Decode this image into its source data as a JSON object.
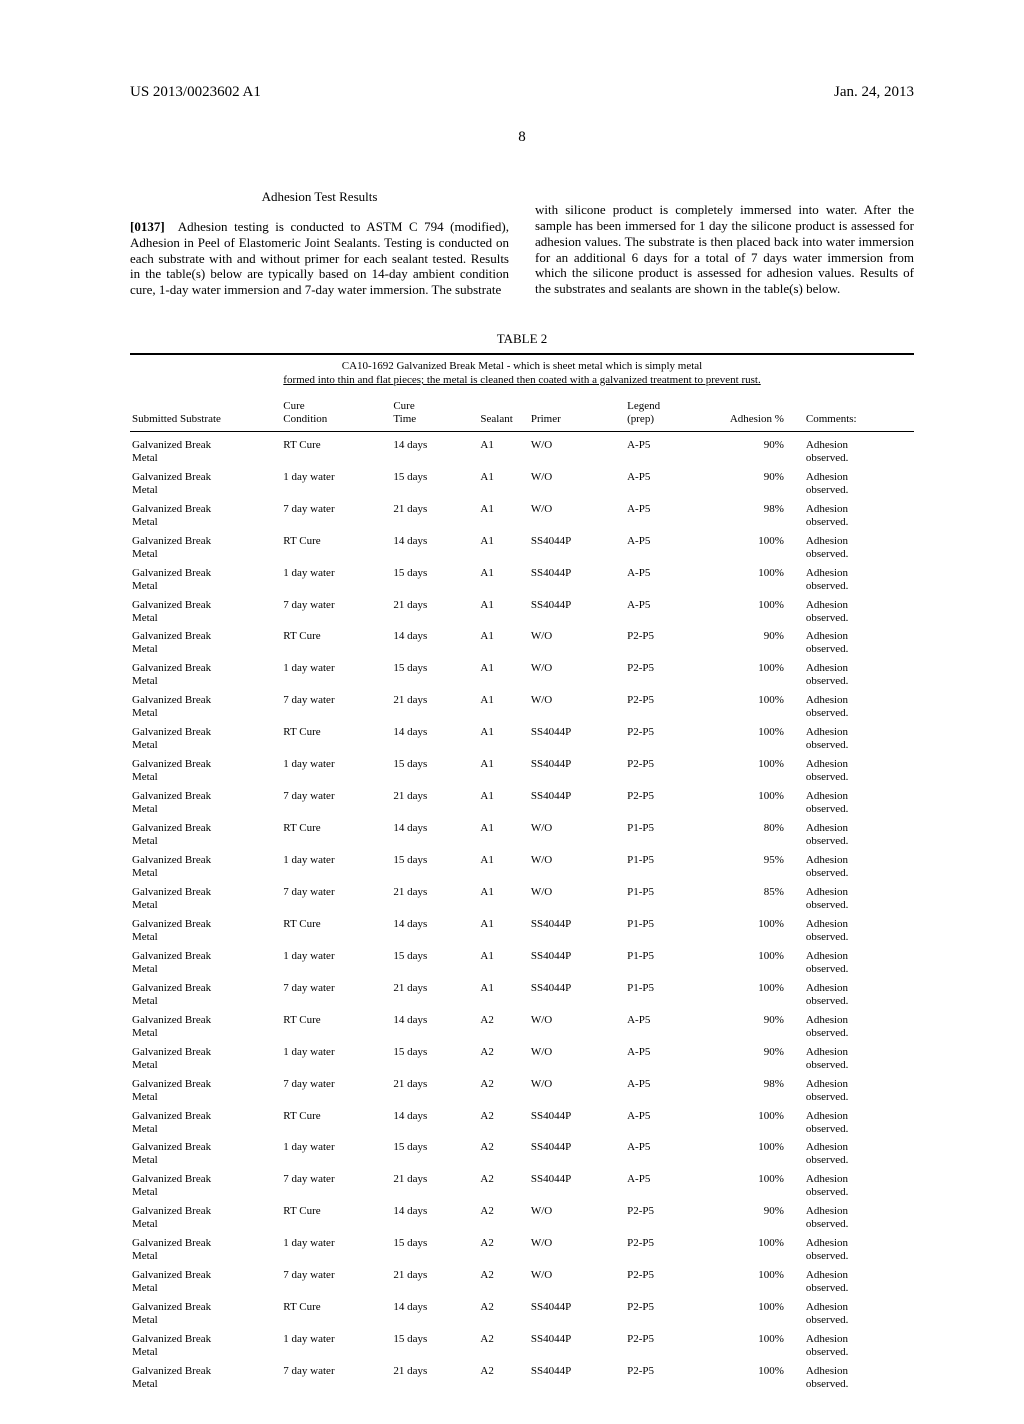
{
  "header": {
    "pub_number": "US 2013/0023602 A1",
    "pub_date": "Jan. 24, 2013"
  },
  "page_number": "8",
  "left_column": {
    "subheading": "Adhesion Test Results",
    "para_label": "[0137]",
    "para_text": "Adhesion testing is conducted to ASTM C 794 (modified), Adhesion in Peel of Elastomeric Joint Sealants. Testing is conducted on each substrate with and without primer for each sealant tested. Results in the table(s) below are typically based on 14-day ambient condition cure, 1-day water immersion and 7-day water immersion. The substrate"
  },
  "right_column": {
    "para_text": "with silicone product is completely immersed into water. After the sample has been immersed for 1 day the silicone product is assessed for adhesion values. The substrate is then placed back into water immersion for an additional 6 days for a total of 7 days water immersion from which the silicone product is assessed for adhesion values. Results of the substrates and sealants are shown in the table(s) below."
  },
  "table": {
    "label": "TABLE 2",
    "caption_line1": "CA10-1692 Galvanized Break Metal - which is sheet metal which is simply metal",
    "caption_line2": "formed into thin and flat pieces; the metal is cleaned then coated with a galvanized treatment to prevent rust.",
    "columns": {
      "substrate": "Submitted Substrate",
      "cond_l1": "Cure",
      "cond_l2": "Condition",
      "time_l1": "Cure",
      "time_l2": "Time",
      "sealant": "Sealant",
      "primer": "Primer",
      "legend_l1": "Legend",
      "legend_l2": "(prep)",
      "adhesion": "Adhesion %",
      "comments": "Comments:"
    },
    "rows": [
      {
        "substrate": "Galvanized Break Metal",
        "cond": "RT Cure",
        "time": "14 days",
        "seal": "A1",
        "prim": "W/O",
        "leg": "A-P5",
        "adh": "90%",
        "com": "Adhesion observed."
      },
      {
        "substrate": "Galvanized Break Metal",
        "cond": "1 day water",
        "time": "15 days",
        "seal": "A1",
        "prim": "W/O",
        "leg": "A-P5",
        "adh": "90%",
        "com": "Adhesion observed."
      },
      {
        "substrate": "Galvanized Break Metal",
        "cond": "7 day water",
        "time": "21 days",
        "seal": "A1",
        "prim": "W/O",
        "leg": "A-P5",
        "adh": "98%",
        "com": "Adhesion observed."
      },
      {
        "substrate": "Galvanized Break Metal",
        "cond": "RT Cure",
        "time": "14 days",
        "seal": "A1",
        "prim": "SS4044P",
        "leg": "A-P5",
        "adh": "100%",
        "com": "Adhesion observed."
      },
      {
        "substrate": "Galvanized Break Metal",
        "cond": "1 day water",
        "time": "15 days",
        "seal": "A1",
        "prim": "SS4044P",
        "leg": "A-P5",
        "adh": "100%",
        "com": "Adhesion observed."
      },
      {
        "substrate": "Galvanized Break Metal",
        "cond": "7 day water",
        "time": "21 days",
        "seal": "A1",
        "prim": "SS4044P",
        "leg": "A-P5",
        "adh": "100%",
        "com": "Adhesion observed."
      },
      {
        "substrate": "Galvanized Break Metal",
        "cond": "RT Cure",
        "time": "14 days",
        "seal": "A1",
        "prim": "W/O",
        "leg": "P2-P5",
        "adh": "90%",
        "com": "Adhesion observed."
      },
      {
        "substrate": "Galvanized Break Metal",
        "cond": "1 day water",
        "time": "15 days",
        "seal": "A1",
        "prim": "W/O",
        "leg": "P2-P5",
        "adh": "100%",
        "com": "Adhesion observed."
      },
      {
        "substrate": "Galvanized Break Metal",
        "cond": "7 day water",
        "time": "21 days",
        "seal": "A1",
        "prim": "W/O",
        "leg": "P2-P5",
        "adh": "100%",
        "com": "Adhesion observed."
      },
      {
        "substrate": "Galvanized Break Metal",
        "cond": "RT Cure",
        "time": "14 days",
        "seal": "A1",
        "prim": "SS4044P",
        "leg": "P2-P5",
        "adh": "100%",
        "com": "Adhesion observed."
      },
      {
        "substrate": "Galvanized Break Metal",
        "cond": "1 day water",
        "time": "15 days",
        "seal": "A1",
        "prim": "SS4044P",
        "leg": "P2-P5",
        "adh": "100%",
        "com": "Adhesion observed."
      },
      {
        "substrate": "Galvanized Break Metal",
        "cond": "7 day water",
        "time": "21 days",
        "seal": "A1",
        "prim": "SS4044P",
        "leg": "P2-P5",
        "adh": "100%",
        "com": "Adhesion observed."
      },
      {
        "substrate": "Galvanized Break Metal",
        "cond": "RT Cure",
        "time": "14 days",
        "seal": "A1",
        "prim": "W/O",
        "leg": "P1-P5",
        "adh": "80%",
        "com": "Adhesion observed."
      },
      {
        "substrate": "Galvanized Break Metal",
        "cond": "1 day water",
        "time": "15 days",
        "seal": "A1",
        "prim": "W/O",
        "leg": "P1-P5",
        "adh": "95%",
        "com": "Adhesion observed."
      },
      {
        "substrate": "Galvanized Break Metal",
        "cond": "7 day water",
        "time": "21 days",
        "seal": "A1",
        "prim": "W/O",
        "leg": "P1-P5",
        "adh": "85%",
        "com": "Adhesion observed."
      },
      {
        "substrate": "Galvanized Break Metal",
        "cond": "RT Cure",
        "time": "14 days",
        "seal": "A1",
        "prim": "SS4044P",
        "leg": "P1-P5",
        "adh": "100%",
        "com": "Adhesion observed."
      },
      {
        "substrate": "Galvanized Break Metal",
        "cond": "1 day water",
        "time": "15 days",
        "seal": "A1",
        "prim": "SS4044P",
        "leg": "P1-P5",
        "adh": "100%",
        "com": "Adhesion observed."
      },
      {
        "substrate": "Galvanized Break Metal",
        "cond": "7 day water",
        "time": "21 days",
        "seal": "A1",
        "prim": "SS4044P",
        "leg": "P1-P5",
        "adh": "100%",
        "com": "Adhesion observed."
      },
      {
        "substrate": "Galvanized Break Metal",
        "cond": "RT Cure",
        "time": "14 days",
        "seal": "A2",
        "prim": "W/O",
        "leg": "A-P5",
        "adh": "90%",
        "com": "Adhesion observed."
      },
      {
        "substrate": "Galvanized Break Metal",
        "cond": "1 day water",
        "time": "15 days",
        "seal": "A2",
        "prim": "W/O",
        "leg": "A-P5",
        "adh": "90%",
        "com": "Adhesion observed."
      },
      {
        "substrate": "Galvanized Break Metal",
        "cond": "7 day water",
        "time": "21 days",
        "seal": "A2",
        "prim": "W/O",
        "leg": "A-P5",
        "adh": "98%",
        "com": "Adhesion observed."
      },
      {
        "substrate": "Galvanized Break Metal",
        "cond": "RT Cure",
        "time": "14 days",
        "seal": "A2",
        "prim": "SS4044P",
        "leg": "A-P5",
        "adh": "100%",
        "com": "Adhesion observed."
      },
      {
        "substrate": "Galvanized Break Metal",
        "cond": "1 day water",
        "time": "15 days",
        "seal": "A2",
        "prim": "SS4044P",
        "leg": "A-P5",
        "adh": "100%",
        "com": "Adhesion observed."
      },
      {
        "substrate": "Galvanized Break Metal",
        "cond": "7 day water",
        "time": "21 days",
        "seal": "A2",
        "prim": "SS4044P",
        "leg": "A-P5",
        "adh": "100%",
        "com": "Adhesion observed."
      },
      {
        "substrate": "Galvanized Break Metal",
        "cond": "RT Cure",
        "time": "14 days",
        "seal": "A2",
        "prim": "W/O",
        "leg": "P2-P5",
        "adh": "90%",
        "com": "Adhesion observed."
      },
      {
        "substrate": "Galvanized Break Metal",
        "cond": "1 day water",
        "time": "15 days",
        "seal": "A2",
        "prim": "W/O",
        "leg": "P2-P5",
        "adh": "100%",
        "com": "Adhesion observed."
      },
      {
        "substrate": "Galvanized Break Metal",
        "cond": "7 day water",
        "time": "21 days",
        "seal": "A2",
        "prim": "W/O",
        "leg": "P2-P5",
        "adh": "100%",
        "com": "Adhesion observed."
      },
      {
        "substrate": "Galvanized Break Metal",
        "cond": "RT Cure",
        "time": "14 days",
        "seal": "A2",
        "prim": "SS4044P",
        "leg": "P2-P5",
        "adh": "100%",
        "com": "Adhesion observed."
      },
      {
        "substrate": "Galvanized Break Metal",
        "cond": "1 day water",
        "time": "15 days",
        "seal": "A2",
        "prim": "SS4044P",
        "leg": "P2-P5",
        "adh": "100%",
        "com": "Adhesion observed."
      },
      {
        "substrate": "Galvanized Break Metal",
        "cond": "7 day water",
        "time": "21 days",
        "seal": "A2",
        "prim": "SS4044P",
        "leg": "P2-P5",
        "adh": "100%",
        "com": "Adhesion observed."
      }
    ]
  }
}
